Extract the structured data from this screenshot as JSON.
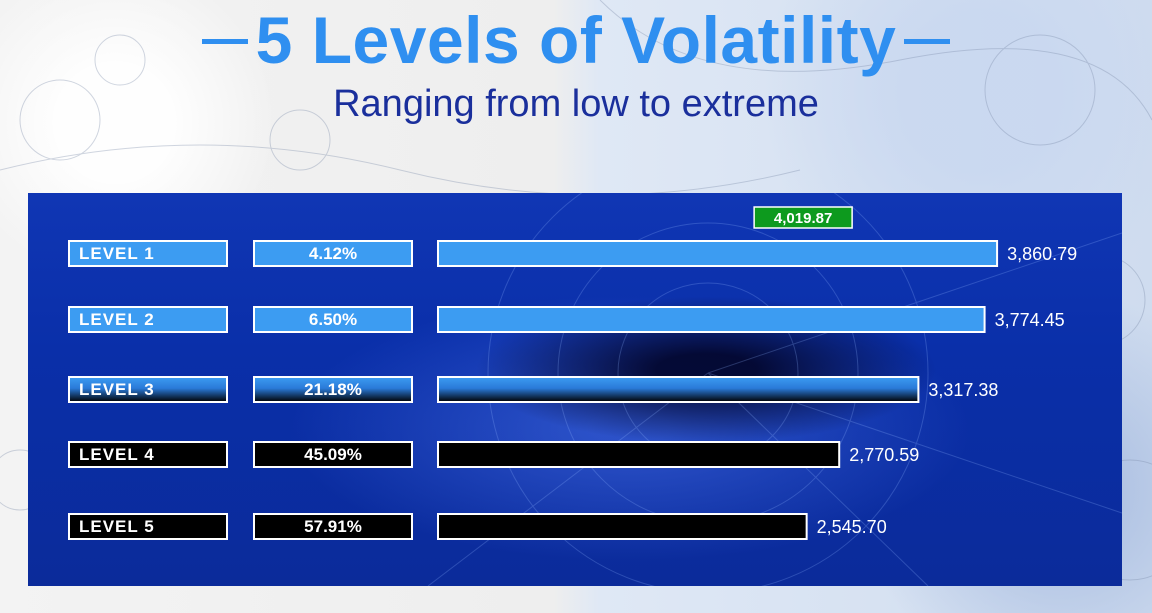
{
  "page": {
    "title": "5 Levels of Volatility",
    "subtitle": "Ranging from low to extreme"
  },
  "chart_data": {
    "type": "bar",
    "orientation": "horizontal",
    "title": "5 Levels of Volatility",
    "subtitle": "Ranging from low to extreme",
    "categories": [
      "LEVEL 1",
      "LEVEL 2",
      "LEVEL 3",
      "LEVEL 4",
      "LEVEL 5"
    ],
    "percentages": [
      "4.12%",
      "6.50%",
      "21.18%",
      "45.09%",
      "57.91%"
    ],
    "values": [
      3860.79,
      3774.45,
      3317.38,
      2770.59,
      2545.7
    ],
    "value_labels": [
      "3,860.79",
      "3,774.45",
      "3,317.38",
      "2,770.59",
      "2,545.70"
    ],
    "max_marker": {
      "value": 4019.87,
      "label": "4,019.87"
    },
    "colors": {
      "bar_fill": "#3c9cf2",
      "bar_dark": "#000000",
      "bar_stroke": "#ffffff",
      "marker_fill": "#0d9a1e"
    },
    "grid": false,
    "legend": "none"
  }
}
